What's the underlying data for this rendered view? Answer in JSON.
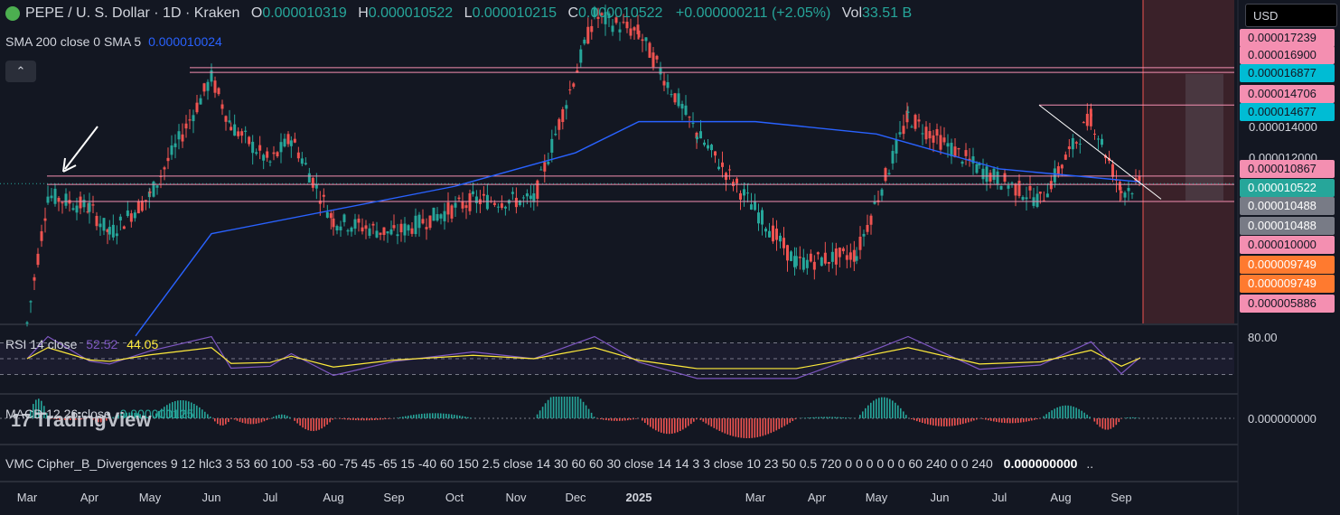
{
  "header": {
    "symbol": "PEPE / U. S. Dollar · 1D · Kraken",
    "open_label": "O",
    "open": "0.000010319",
    "high_label": "H",
    "high": "0.000010522",
    "low_label": "L",
    "low": "0.000010215",
    "close_label": "C",
    "close": "0.000010522",
    "change": "+0.000000211 (+2.05%)",
    "vol_label": "Vol",
    "vol": "33.51 B"
  },
  "sma": {
    "label": "SMA 200 close 0 SMA 5",
    "value": "0.000010024"
  },
  "currency": "USD",
  "price_tags": [
    {
      "text": "0.000017239",
      "bg": "#f48fb1",
      "fg": "#131722"
    },
    {
      "text": "0.000016900",
      "bg": "#f48fb1",
      "fg": "#131722"
    },
    {
      "text": "0.000016877",
      "bg": "#00bcd4",
      "fg": "#131722"
    },
    {
      "text": "0.000014706",
      "bg": "#f48fb1",
      "fg": "#131722"
    },
    {
      "text": "0.000014677",
      "bg": "#00bcd4",
      "fg": "#131722"
    },
    {
      "text": "0.000014000",
      "bg": "",
      "fg": "#d1d4dc"
    },
    {
      "text": "0.000012000",
      "bg": "",
      "fg": "#d1d4dc"
    },
    {
      "text": "0.000010867",
      "bg": "#f48fb1",
      "fg": "#131722"
    },
    {
      "text": "0.000010522",
      "bg": "#26a69a",
      "fg": "#ffffff"
    },
    {
      "text": "0.000010488",
      "bg": "#787b86",
      "fg": "#ffffff"
    },
    {
      "text": "0.000010488",
      "bg": "#787b86",
      "fg": "#ffffff"
    },
    {
      "text": "0.000010000",
      "bg": "#f48fb1",
      "fg": "#131722"
    },
    {
      "text": "0.000009749",
      "bg": "#ff7a2f",
      "fg": "#ffffff"
    },
    {
      "text": "0.000009749",
      "bg": "#ff7a2f",
      "fg": "#ffffff"
    },
    {
      "text": "0.000005886",
      "bg": "#f48fb1",
      "fg": "#131722"
    }
  ],
  "rsi": {
    "label": "RSI 14 close",
    "value1": "52.52",
    "value2": "44.05",
    "axis_label": "80.00"
  },
  "macd": {
    "label": "MACD 12 26 close",
    "value": "0.000000125",
    "axis_label": "0.000000000"
  },
  "vmc": {
    "label": "VMC Cipher_B_Divergences 9 12 hlc3 3 53 60 100 -53 -60 -75 45 -65 15 -40 60 150 2.5 close 14 30 60 60 30 close 14 14 3 3 close 10 23 50 0.5 720 0 0 0 0 0 0 60 240 0 0 240",
    "value": "0.000000000",
    "dots": ".."
  },
  "watermark": "TradingView",
  "x_axis": [
    "Mar",
    "Apr",
    "May",
    "Jun",
    "Jul",
    "Aug",
    "Sep",
    "Oct",
    "Nov",
    "Dec",
    "2025",
    "Mar",
    "Apr",
    "May",
    "Jun",
    "Jul",
    "Aug",
    "Sep"
  ],
  "colors": {
    "up": "#26a69a",
    "down": "#ef5350",
    "sma": "#2962ff",
    "rsi": "#7e57c2",
    "rsi_ma": "#ffeb3b",
    "level": "#f48fb1"
  },
  "chart_data": {
    "type": "candlestick",
    "title": "PEPE / U. S. Dollar · 1D · Kraken",
    "xlabel": "",
    "ylabel": "",
    "y_scale": "log",
    "ylim": [
      5.8e-06,
      2.3e-05
    ],
    "horizontal_levels": [
      1.7239e-05,
      1.69e-05,
      1.4706e-05,
      1.0867e-05,
      1.0488e-05,
      9.749e-06
    ],
    "months": [
      "Mar",
      "Apr",
      "May",
      "Jun",
      "Jul",
      "Aug",
      "Sep",
      "Oct",
      "Nov",
      "Dec",
      "2025",
      "Mar",
      "Apr",
      "May",
      "Jun",
      "Jul",
      "Aug",
      "Sep"
    ],
    "close_path_approx": [
      [
        "Mar",
        5.8e-06
      ],
      [
        "Mar",
        1e-05
      ],
      [
        "Apr",
        9.5e-06
      ],
      [
        "Apr",
        8.5e-06
      ],
      [
        "May",
        1e-05
      ],
      [
        "Jun",
        1.65e-05
      ],
      [
        "Jun",
        1.35e-05
      ],
      [
        "Jul",
        1.15e-05
      ],
      [
        "Jul",
        1.28e-05
      ],
      [
        "Aug",
        9e-06
      ],
      [
        "Sep",
        8.5e-06
      ],
      [
        "Oct",
        9.8e-06
      ],
      [
        "Nov",
        9.8e-06
      ],
      [
        "Dec",
        2.15e-05
      ],
      [
        "2025",
        2e-05
      ],
      [
        "2025",
        1.3e-05
      ],
      [
        "Mar",
        7.5e-06
      ],
      [
        "Apr",
        7.8e-06
      ],
      [
        "May",
        1.4e-05
      ],
      [
        "Jun",
        1.12e-05
      ],
      [
        "Jul",
        9.8e-06
      ],
      [
        "Aug",
        1.4e-05
      ],
      [
        "Sep",
        1.02e-05
      ],
      [
        "Sep",
        1.05e-05
      ]
    ],
    "sma_200_path_approx": [
      [
        "Mar",
        5.5e-06
      ],
      [
        "Jun",
        8.5e-06
      ],
      [
        "Oct",
        1.04e-05
      ],
      [
        "Dec",
        1.2e-05
      ],
      [
        "2025",
        1.37e-05
      ],
      [
        "Mar",
        1.37e-05
      ],
      [
        "May",
        1.3e-05
      ],
      [
        "Jul",
        1.12e-05
      ],
      [
        "Sep",
        1.06e-05
      ]
    ],
    "rsi": {
      "last": 52.52,
      "ma": 44.05,
      "levels": [
        70,
        50,
        30
      ]
    },
    "macd": {
      "last": 1.25e-07
    }
  }
}
